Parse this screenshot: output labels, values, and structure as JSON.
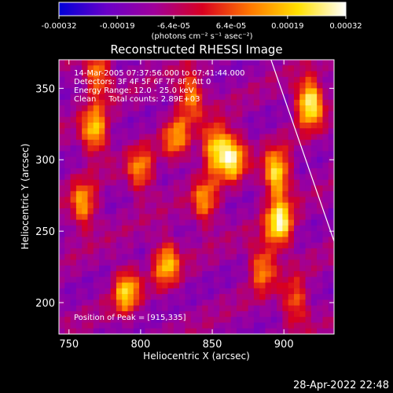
{
  "chart_data": {
    "type": "heatmap",
    "title": "Reconstructed RHESSI Image",
    "colorbar": {
      "tick_labels": [
        "-0.00032",
        "-0.00019",
        "-6.4e-05",
        "6.4e-05",
        "0.00019",
        "0.00032"
      ],
      "tick_values": [
        -0.00032,
        -0.00019,
        -6.4e-05,
        6.4e-05,
        0.00019,
        0.00032
      ],
      "range": [
        -0.00032,
        0.00032
      ],
      "unit_label": "(photons cm⁻² s⁻¹ asec⁻²)",
      "colors": [
        "#0000d8",
        "#6a00c8",
        "#a0009a",
        "#d80020",
        "#ff7800",
        "#ffe000",
        "#ffffff"
      ]
    },
    "xlabel": "Heliocentric X (arcsec)",
    "ylabel": "Heliocentric Y (arcsec)",
    "xlim": [
      743,
      935
    ],
    "ylim": [
      178,
      370
    ],
    "xticks": [
      750,
      800,
      850,
      900
    ],
    "yticks": [
      200,
      250,
      300,
      350
    ],
    "annotations": [
      "14-Mar-2005 07:37:56.000 to 07:41:44.000",
      "Detectors: 3F 4F 5F 6F 7F 8F, Att 0",
      "Energy Range: 12.0 - 25.0 keV",
      "Clean     Total counts: 2.89E+03"
    ],
    "peak_label": "Position of Peak = [915,335]",
    "peak": [
      915,
      335
    ],
    "limb": [
      [
        891,
        370
      ],
      [
        935,
        243
      ]
    ],
    "bright_sources": [
      {
        "x": 918,
        "y": 340,
        "value": 0.00032
      },
      {
        "x": 897,
        "y": 255,
        "value": 0.00029
      },
      {
        "x": 895,
        "y": 290,
        "value": 0.00026
      },
      {
        "x": 864,
        "y": 302,
        "value": 0.00024
      },
      {
        "x": 852,
        "y": 308,
        "value": 0.00022
      },
      {
        "x": 768,
        "y": 320,
        "value": 0.00021
      },
      {
        "x": 790,
        "y": 208,
        "value": 0.00019
      },
      {
        "x": 818,
        "y": 228,
        "value": 0.00018
      },
      {
        "x": 760,
        "y": 268,
        "value": 0.00016
      },
      {
        "x": 770,
        "y": 360,
        "value": 0.00015
      },
      {
        "x": 835,
        "y": 345,
        "value": 0.00015
      },
      {
        "x": 800,
        "y": 292,
        "value": 0.00013
      },
      {
        "x": 845,
        "y": 270,
        "value": 0.00013
      },
      {
        "x": 885,
        "y": 225,
        "value": 0.00014
      },
      {
        "x": 825,
        "y": 315,
        "value": 0.00012
      },
      {
        "x": 908,
        "y": 200,
        "value": 0.00011
      }
    ]
  },
  "timestamp": "28-Apr-2022 22:48"
}
